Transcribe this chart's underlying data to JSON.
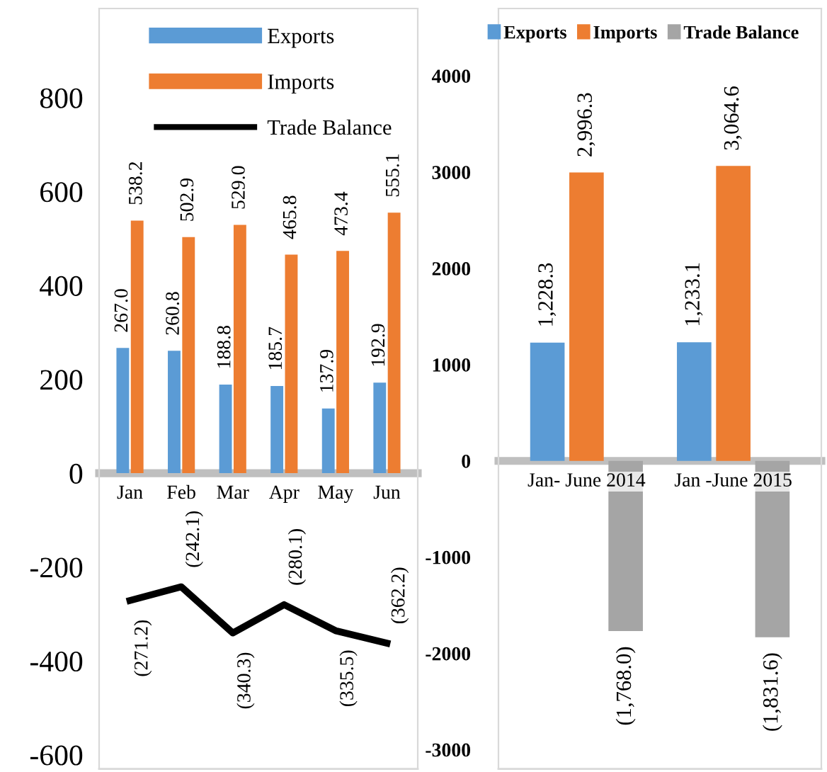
{
  "chart_data": [
    {
      "type": "bar",
      "categories": [
        "Jan",
        "Feb",
        "Mar",
        "Apr",
        "May",
        "Jun"
      ],
      "ylim": [
        -630,
        990
      ],
      "yticks": [
        -600,
        -400,
        -200,
        0,
        200,
        400,
        600,
        800
      ],
      "grid": false,
      "legend": "top",
      "series": [
        {
          "name": "Exports",
          "color": "#5b9bd5",
          "values": [
            267.0,
            260.8,
            188.8,
            185.7,
            137.9,
            192.9
          ],
          "value_labels": [
            "267.0",
            "260.8",
            "188.8",
            "185.7",
            "137.9",
            "192.9"
          ]
        },
        {
          "name": "Imports",
          "color": "#ed7d31",
          "values": [
            538.2,
            502.9,
            529.0,
            465.8,
            473.4,
            555.1
          ],
          "value_labels": [
            "538.2",
            "502.9",
            "529.0",
            "465.8",
            "473.4",
            "555.1"
          ]
        },
        {
          "name": "Trade Balance",
          "type": "line",
          "color": "#000000",
          "values": [
            -271.2,
            -242.1,
            -340.3,
            -280.1,
            -335.5,
            -362.2
          ],
          "value_labels": [
            "(271.2)",
            "(242.1)",
            "(340.3)",
            "(280.1)",
            "(335.5)",
            "(362.2)"
          ]
        }
      ]
    },
    {
      "type": "bar",
      "categories": [
        "Jan- June 2014",
        "Jan -June 2015"
      ],
      "ylim": [
        -3200,
        4700
      ],
      "yticks": [
        -3000,
        -2000,
        -1000,
        0,
        1000,
        2000,
        3000,
        4000
      ],
      "grid": false,
      "legend": "top",
      "series": [
        {
          "name": "Exports",
          "color": "#5b9bd5",
          "values": [
            1228.3,
            1233.1
          ],
          "value_labels": [
            "1,228.3",
            "1,233.1"
          ]
        },
        {
          "name": "Imports",
          "color": "#ed7d31",
          "values": [
            2996.3,
            3064.6
          ],
          "value_labels": [
            "2,996.3",
            "3,064.6"
          ]
        },
        {
          "name": "Trade Balance",
          "color": "#a5a5a5",
          "values": [
            -1768.0,
            -1831.6
          ],
          "value_labels": [
            "(1,768.0)",
            "(1,831.6)"
          ]
        }
      ]
    }
  ]
}
